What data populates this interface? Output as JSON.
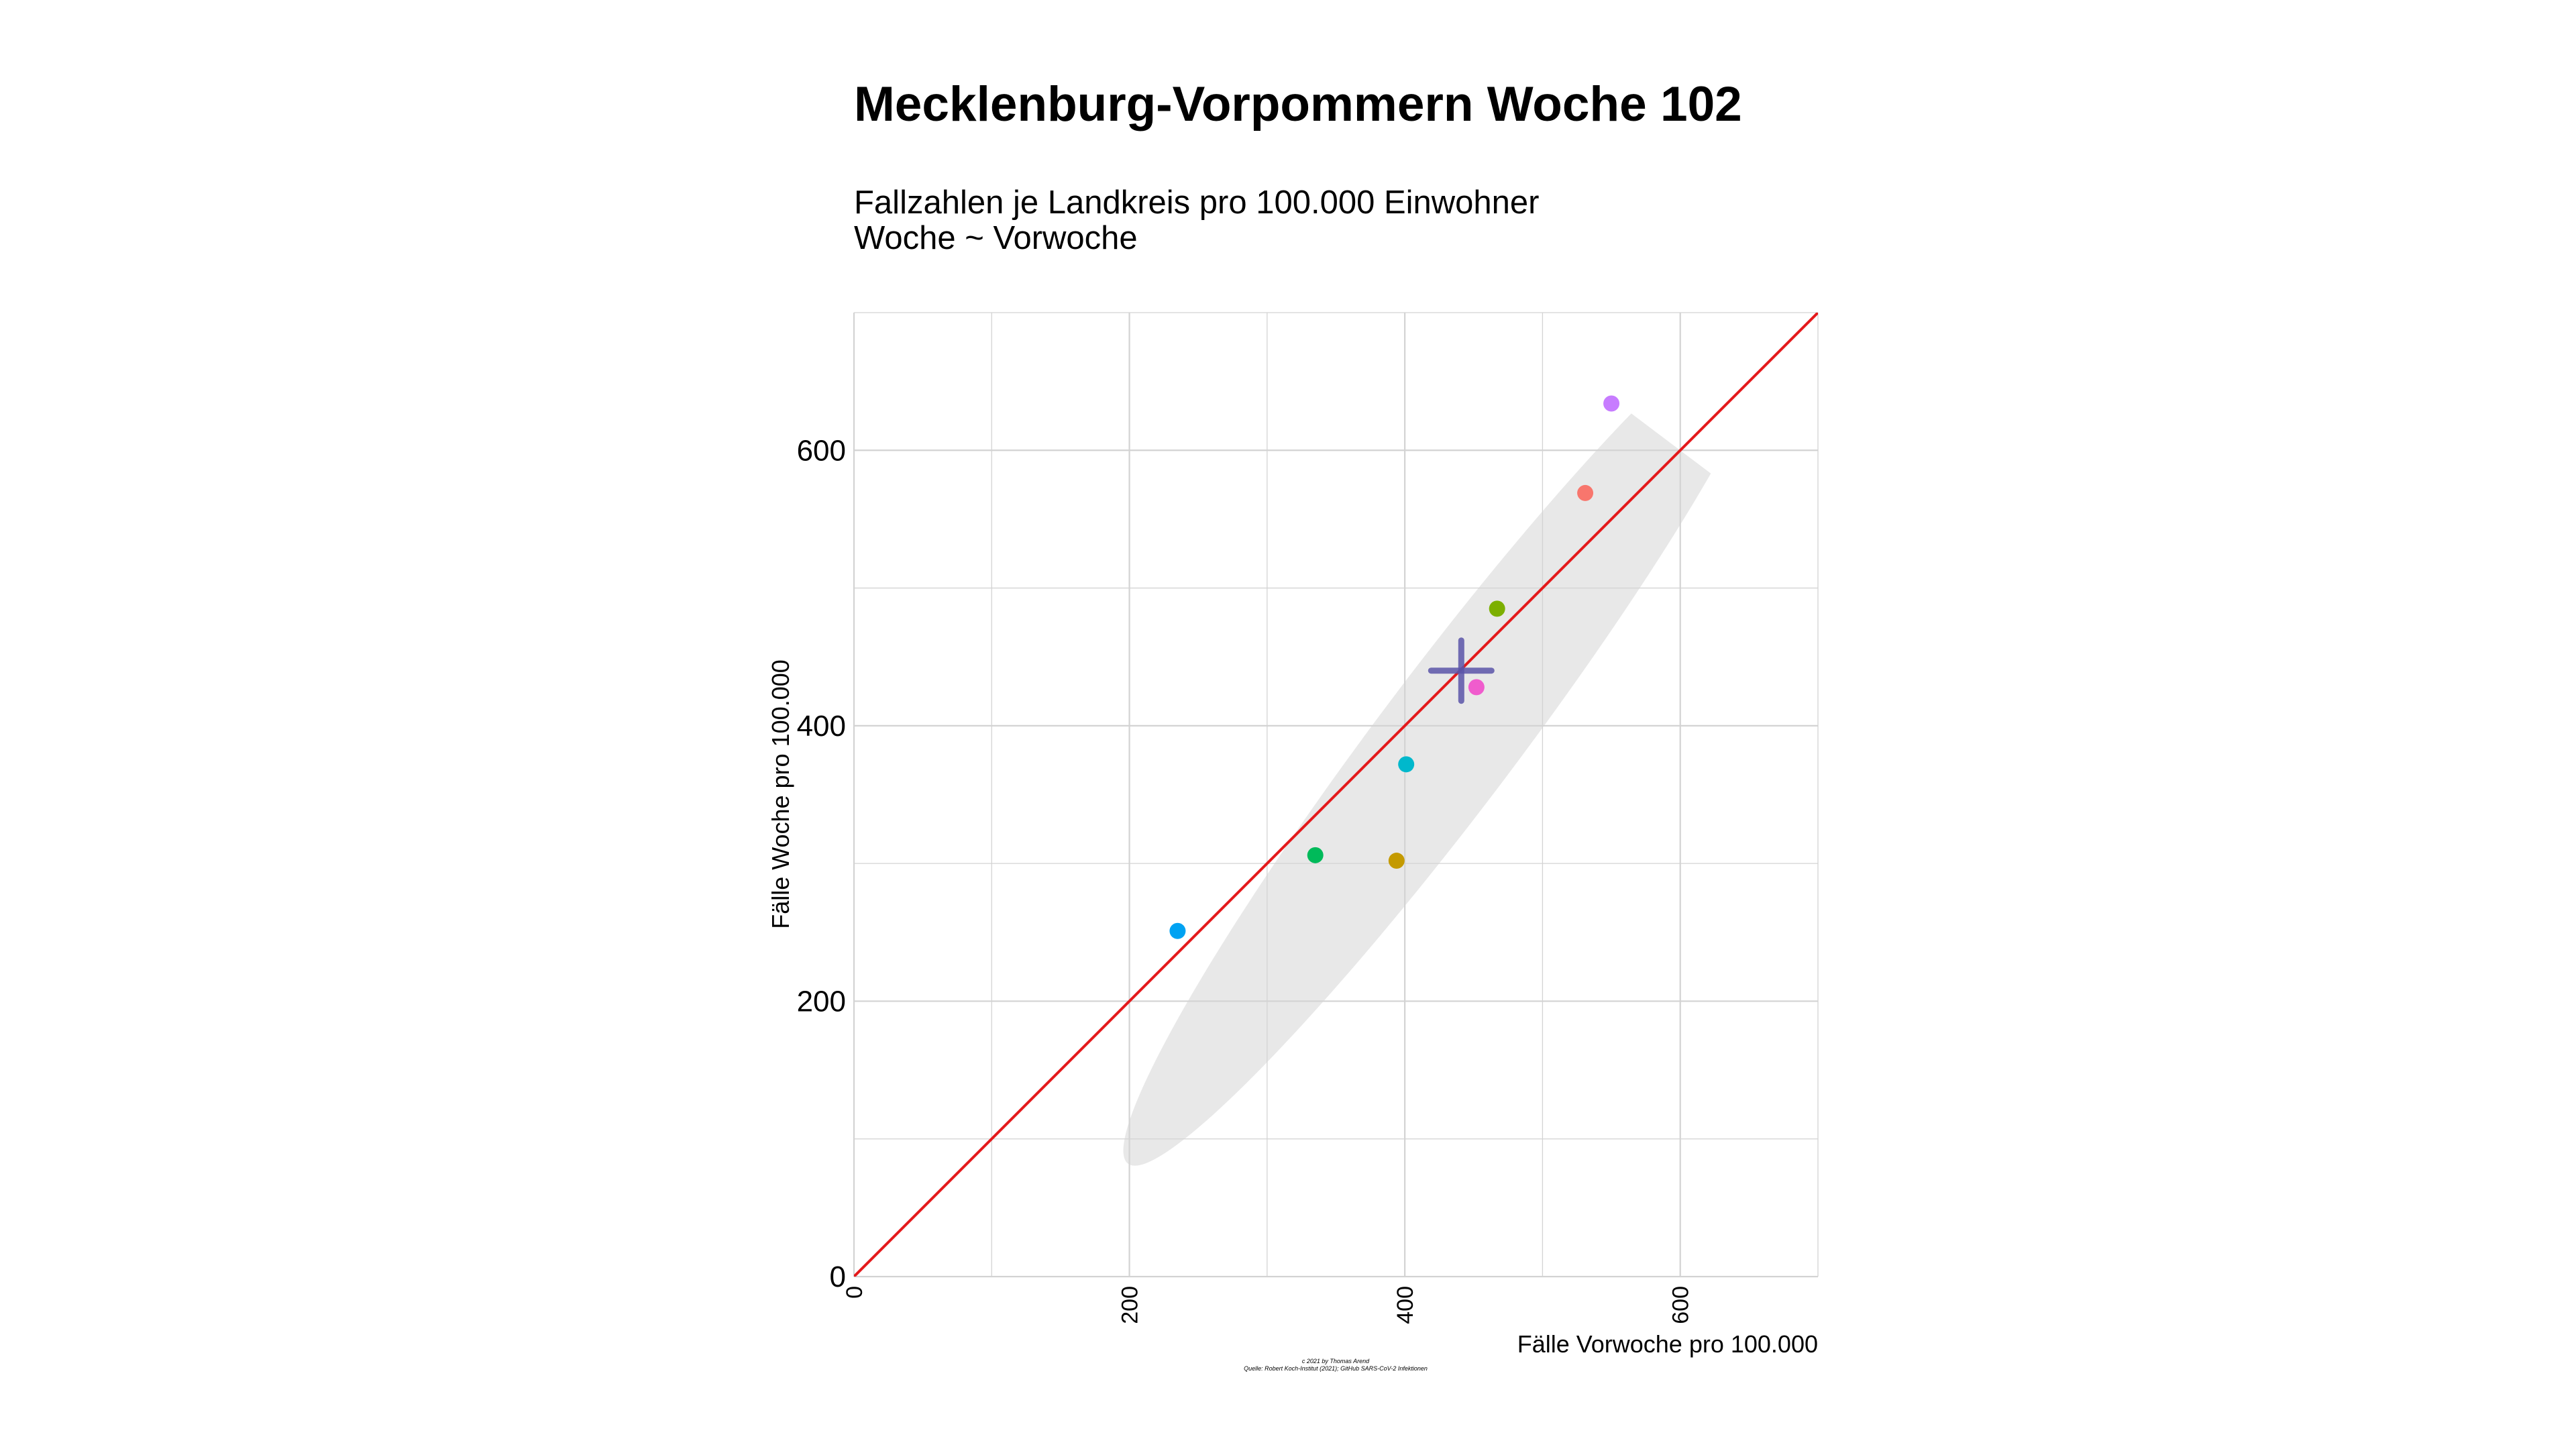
{
  "chart_data": {
    "type": "scatter",
    "title": "Mecklenburg-Vorpommern Woche 102",
    "subtitle": [
      "Fallzahlen je Landkreis pro 100.000 Einwohner",
      "Woche ~ Vorwoche"
    ],
    "xlabel": "Fälle Vorwoche pro 100.000",
    "ylabel": "Fälle Woche pro 100.000",
    "xlim": [
      0,
      700
    ],
    "ylim": [
      0,
      700
    ],
    "x_ticks": [
      0,
      200,
      400,
      600
    ],
    "y_ticks": [
      0,
      200,
      400,
      600
    ],
    "grid": true,
    "reference_line": {
      "slope": 1,
      "intercept": 0,
      "color": "#e41a1c"
    },
    "points": [
      {
        "x": 235,
        "y": 251,
        "color": "#00a2f2"
      },
      {
        "x": 335,
        "y": 306,
        "color": "#00ba5a"
      },
      {
        "x": 394,
        "y": 302,
        "color": "#c49a00"
      },
      {
        "x": 401,
        "y": 372,
        "color": "#00b8cc"
      },
      {
        "x": 452,
        "y": 428,
        "color": "#f05ccd"
      },
      {
        "x": 467,
        "y": 485,
        "color": "#7caf00"
      },
      {
        "x": 531,
        "y": 569,
        "color": "#f8766d"
      },
      {
        "x": 550,
        "y": 634,
        "color": "#c77cff"
      }
    ],
    "mean_marker": {
      "x": 441,
      "y": 440,
      "color": "#5b55a8"
    },
    "ellipse": {
      "vertices": [
        [
          199,
          82
        ],
        [
          665,
          700
        ]
      ],
      "co_vertices": [
        [
          373,
          450
        ],
        [
          467,
          485
        ]
      ],
      "fill": "#e8e8e8"
    },
    "caption": [
      "c 2021 by Thomas Arend",
      "Quelle: Robert Koch-Institut (2021); GitHub SARS-CoV-2 Infektionen"
    ]
  }
}
